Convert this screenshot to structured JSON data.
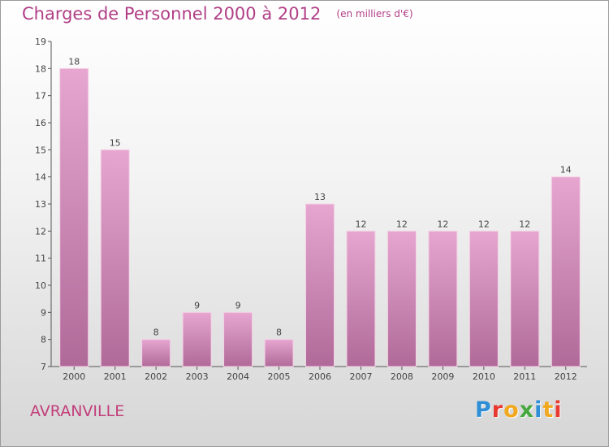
{
  "chart_data": {
    "type": "bar",
    "title": "Charges de Personnel 2000 à 2012",
    "subtitle": "(en milliers d'€)",
    "categories": [
      "2000",
      "2001",
      "2002",
      "2003",
      "2004",
      "2005",
      "2006",
      "2007",
      "2008",
      "2009",
      "2010",
      "2011",
      "2012"
    ],
    "values": [
      18,
      15,
      8,
      9,
      9,
      8,
      13,
      12,
      12,
      12,
      12,
      12,
      14
    ],
    "ylim": [
      7,
      19
    ],
    "yticks": [
      7,
      8,
      9,
      10,
      11,
      12,
      13,
      14,
      15,
      16,
      17,
      18,
      19
    ],
    "xlabel": "",
    "ylabel": "",
    "grid": false,
    "legend": "none",
    "colors": {
      "bar_top": "#e6a6d0",
      "bar_bottom": "#b06a99",
      "title": "#b13f86",
      "axis": "#555555"
    }
  },
  "footer": {
    "town": "AVRANVILLE",
    "brand": "Proxiti",
    "brand_colors": [
      "#2f8fd6",
      "#e8382f",
      "#f2a81d",
      "#46a83e",
      "#2f8fd6",
      "#f2a81d",
      "#e8382f"
    ]
  }
}
